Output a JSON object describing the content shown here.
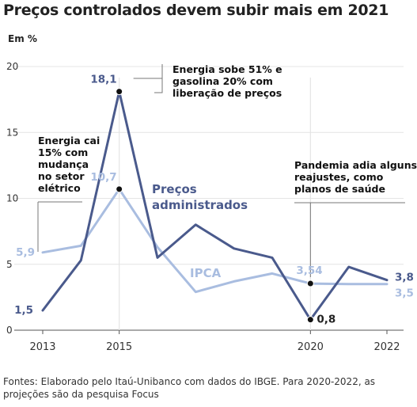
{
  "title": "Preços controlados devem subir mais em 2021",
  "unit": "Em %",
  "source": "Fontes: Elaborado pelo Itaú-Unibanco com dados do IBGE. Para 2020-2022, as projeções são da pesquisa Focus",
  "colors": {
    "administrados": "#4a5a8c",
    "ipca": "#a9bde0",
    "grid": "#e4e4e4",
    "axis": "#555555",
    "marker": "#111111"
  },
  "chart_data": {
    "type": "line",
    "title": "Preços controlados devem subir mais em 2021",
    "ylabel": "Em %",
    "xlabel": "",
    "xlim": [
      2013,
      2022.5
    ],
    "ylim": [
      0,
      20
    ],
    "yticks": [
      0,
      5,
      10,
      15,
      20
    ],
    "xticks": [
      2013,
      2015,
      2020,
      2022
    ],
    "grid": "horizontal",
    "series": [
      {
        "name": "Preços administrados",
        "name_lines": [
          "Preços",
          "administrados"
        ],
        "x": [
          2013,
          2014,
          2015,
          2016,
          2017,
          2018,
          2019,
          2020,
          2021,
          2022
        ],
        "y": [
          1.5,
          5.3,
          18.1,
          5.5,
          8.0,
          6.2,
          5.5,
          0.8,
          4.8,
          3.8
        ]
      },
      {
        "name": "IPCA",
        "name_lines": [
          "IPCA"
        ],
        "x": [
          2013,
          2014,
          2015,
          2016,
          2017,
          2018,
          2019,
          2020,
          2021,
          2022
        ],
        "y": [
          5.9,
          6.4,
          10.7,
          6.3,
          2.9,
          3.7,
          4.3,
          3.54,
          3.5,
          3.5
        ]
      }
    ],
    "data_labels": [
      {
        "text": "18,1",
        "x": 2015,
        "y": 18.1,
        "series": 0,
        "marker": true
      },
      {
        "text": "10,7",
        "x": 2015,
        "y": 10.7,
        "series": 1,
        "marker": true
      },
      {
        "text": "5,9",
        "x": 2013,
        "y": 5.9,
        "series": 1,
        "marker": false
      },
      {
        "text": "1,5",
        "x": 2013,
        "y": 1.5,
        "series": 0,
        "marker": false
      },
      {
        "text": "3,54",
        "x": 2020,
        "y": 3.54,
        "series": 1,
        "marker": true
      },
      {
        "text": "0,8",
        "x": 2020,
        "y": 0.8,
        "series": 0,
        "marker": true
      },
      {
        "text": "3,8",
        "x": 2022,
        "y": 3.8,
        "series": 0,
        "marker": false
      },
      {
        "text": "3,5",
        "x": 2022,
        "y": 3.5,
        "series": 1,
        "marker": false
      }
    ],
    "annotations": [
      {
        "lines": [
          "Energia sobe 51% e",
          "gasolina 20% com",
          "liberação de preços"
        ],
        "x": 2015
      },
      {
        "lines": [
          "Energia cai",
          "15% com",
          "mudança",
          "no setor",
          "elétrico"
        ],
        "x": 2013
      },
      {
        "lines": [
          "Pandemia adia alguns",
          "reajustes, como",
          "planos de saúde"
        ],
        "x": 2020
      }
    ]
  }
}
